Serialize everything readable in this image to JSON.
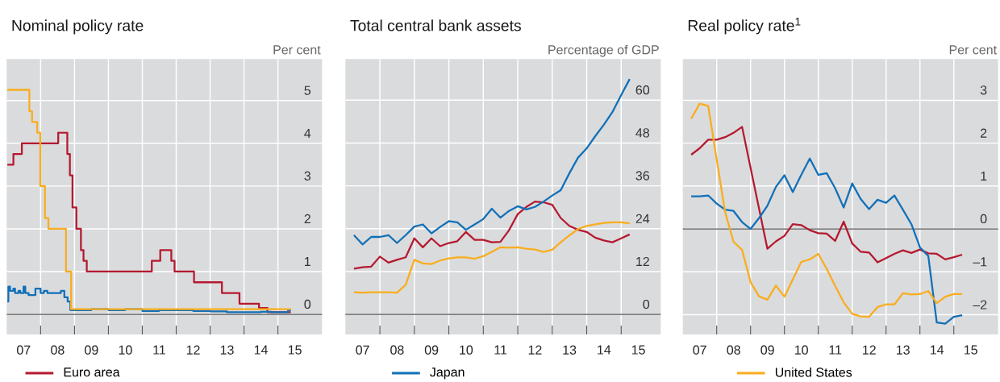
{
  "chart_data": [
    {
      "type": "step",
      "title": "Nominal policy rate",
      "ylabel": "Per cent",
      "grid": true,
      "legend": "bottom",
      "xlim": [
        "2007-01-01",
        "2016-04-20"
      ],
      "ylim": [
        -0.47,
        5.97
      ],
      "xticks": [
        {
          "value": "2008",
          "label": null
        },
        {
          "value": "2009",
          "label": null
        },
        {
          "value": "2010",
          "label": null
        },
        {
          "value": "2011",
          "label": null
        },
        {
          "value": "2012",
          "label": null
        },
        {
          "value": "2013",
          "label": null
        },
        {
          "value": "2014",
          "label": null
        },
        {
          "value": "2015",
          "label": null
        },
        {
          "value": "2007-07-02",
          "label": "07"
        },
        {
          "value": "2008-07-02",
          "label": "08"
        },
        {
          "value": "2009-07-02",
          "label": "09"
        },
        {
          "value": "2010-07-02",
          "label": "10"
        },
        {
          "value": "2011-07-02",
          "label": "11"
        },
        {
          "value": "2012-07-02",
          "label": "12"
        },
        {
          "value": "2013-07-02",
          "label": "13"
        },
        {
          "value": "2014-07-02",
          "label": "14"
        },
        {
          "value": "2015-07-02",
          "label": "15"
        }
      ],
      "yticks": [
        0,
        1,
        2,
        3,
        4,
        5
      ],
      "ref_lines": [
        {
          "axis": "y",
          "value": 0,
          "color": "#555555"
        }
      ],
      "series": [
        {
          "name": "Euro area",
          "color": "#b5192f",
          "x": [
            "2007-01-08",
            "2007-03-14",
            "2007-06-13",
            "2008-07-09",
            "2008-10-15",
            "2008-11-12",
            "2008-12-10",
            "2009-01-21",
            "2009-03-11",
            "2009-04-08",
            "2009-05-13",
            "2011-04-13",
            "2011-07-13",
            "2011-11-09",
            "2011-12-14",
            "2012-07-11",
            "2013-05-08",
            "2013-11-13",
            "2014-06-11",
            "2014-09-10",
            "2015-05-20"
          ],
          "values": [
            3.5,
            3.75,
            4.0,
            4.25,
            3.75,
            3.25,
            2.5,
            2.0,
            1.5,
            1.25,
            1.0,
            1.25,
            1.5,
            1.25,
            1.0,
            0.75,
            0.5,
            0.25,
            0.15,
            0.05,
            0.05
          ]
        },
        {
          "name": "Japan",
          "color": "#1170b8",
          "x": [
            "2007-01-08",
            "2007-01-19",
            "2007-02-06",
            "2007-03-14",
            "2007-04-01",
            "2007-05-08",
            "2007-05-27",
            "2007-07-01",
            "2007-07-20",
            "2007-08-25",
            "2007-11-06",
            "2008-01-01",
            "2008-02-06",
            "2008-03-14",
            "2008-08-07",
            "2008-09-13",
            "2008-10-19",
            "2008-11-17",
            "2009-07-01",
            "2010-01-01",
            "2010-07-01",
            "2011-01-01",
            "2011-07-01",
            "2012-01-01",
            "2012-07-01",
            "2013-01-01",
            "2013-07-01",
            "2014-01-01",
            "2014-07-01",
            "2014-10-19",
            "2015-04-20",
            "2015-05-20"
          ],
          "values": [
            0.3,
            0.65,
            0.55,
            0.6,
            0.5,
            0.55,
            0.5,
            0.65,
            0.5,
            0.45,
            0.6,
            0.5,
            0.55,
            0.5,
            0.55,
            0.4,
            0.3,
            0.1,
            0.12,
            0.1,
            0.12,
            0.08,
            0.1,
            0.1,
            0.08,
            0.07,
            0.05,
            0.05,
            0.06,
            0.05,
            0.1,
            0.1
          ]
        },
        {
          "name": "United States",
          "color": "#f9ad1d",
          "x": [
            "2007-01-08",
            "2007-09-02",
            "2007-10-01",
            "2007-11-25",
            "2007-12-28",
            "2008-02-17",
            "2008-03-25",
            "2008-10-01",
            "2008-11-25",
            "2015-05-20"
          ],
          "values": [
            5.25,
            4.75,
            4.5,
            4.25,
            3.0,
            2.25,
            2.0,
            1.0,
            0.12,
            0.12
          ]
        }
      ]
    },
    {
      "type": "line",
      "title": "Total central bank assets",
      "ylabel": "Percentage of GDP",
      "grid": true,
      "xlim": [
        "2007-01-01",
        "2016-02-24"
      ],
      "ylim": [
        -5.6,
        71.5
      ],
      "xticks": [
        {
          "value": "2008",
          "label": null
        },
        {
          "value": "2009",
          "label": null
        },
        {
          "value": "2010",
          "label": null
        },
        {
          "value": "2011",
          "label": null
        },
        {
          "value": "2012",
          "label": null
        },
        {
          "value": "2013",
          "label": null
        },
        {
          "value": "2014",
          "label": null
        },
        {
          "value": "2015",
          "label": null
        },
        {
          "value": "2007-07-02",
          "label": "07"
        },
        {
          "value": "2008-07-02",
          "label": "08"
        },
        {
          "value": "2009-07-02",
          "label": "09"
        },
        {
          "value": "2010-07-02",
          "label": "10"
        },
        {
          "value": "2011-07-02",
          "label": "11"
        },
        {
          "value": "2012-07-02",
          "label": "12"
        },
        {
          "value": "2013-07-02",
          "label": "13"
        },
        {
          "value": "2014-07-02",
          "label": "14"
        },
        {
          "value": "2015-07-02",
          "label": "15"
        }
      ],
      "yticks": [
        0,
        12,
        24,
        36,
        48,
        60
      ],
      "ref_lines": [
        {
          "axis": "y",
          "value": 0,
          "color": "#555555"
        }
      ],
      "x": [
        "2007-04",
        "2007-07",
        "2007-10",
        "2008-01",
        "2008-04",
        "2008-07",
        "2008-10",
        "2009-01",
        "2009-04",
        "2009-07",
        "2009-10",
        "2010-01",
        "2010-04",
        "2010-07",
        "2010-10",
        "2011-01",
        "2011-04",
        "2011-07",
        "2011-10",
        "2012-01",
        "2012-04",
        "2012-07",
        "2012-10",
        "2013-01",
        "2013-04",
        "2013-07",
        "2013-10",
        "2014-01",
        "2014-04",
        "2014-07",
        "2014-10",
        "2015-01",
        "2015-04"
      ],
      "series": [
        {
          "color": "#b5192f",
          "values": [
            12.8,
            13.2,
            13.4,
            16.2,
            14.5,
            15.3,
            16.0,
            21.3,
            18.8,
            21.3,
            19.1,
            20.0,
            20.5,
            23.1,
            20.9,
            20.9,
            20.2,
            20.3,
            23.6,
            28.1,
            30.1,
            31.6,
            31.4,
            30.7,
            27.0,
            24.8,
            23.7,
            23.1,
            21.5,
            20.7,
            20.2,
            21.3,
            22.4
          ]
        },
        {
          "color": "#1170b8",
          "values": [
            22.2,
            19.6,
            21.7,
            21.7,
            22.2,
            20.0,
            22.2,
            24.6,
            25.2,
            22.7,
            24.5,
            26.1,
            25.8,
            23.7,
            25.2,
            26.7,
            29.6,
            27.1,
            29.0,
            30.3,
            29.4,
            30.1,
            31.6,
            33.3,
            34.8,
            39.5,
            43.9,
            46.5,
            49.9,
            53.1,
            56.7,
            61.4,
            65.9
          ]
        },
        {
          "color": "#f9ad1d",
          "values": [
            6.2,
            6.1,
            6.2,
            6.2,
            6.2,
            6.1,
            8.3,
            15.3,
            14.3,
            14.1,
            15.1,
            15.7,
            16.0,
            16.0,
            15.6,
            16.3,
            17.5,
            18.8,
            18.7,
            18.8,
            18.4,
            18.2,
            17.5,
            18.1,
            20.2,
            22.1,
            23.9,
            24.8,
            25.2,
            25.6,
            25.8,
            25.8,
            25.5
          ]
        }
      ]
    },
    {
      "type": "line",
      "title": "Real policy rate$^{1}$",
      "ylabel": "Per cent",
      "grid": true,
      "xlim": [
        "2007-01-01",
        "2016-04-23"
      ],
      "ylim": [
        -2.46,
        3.96
      ],
      "xticks": [
        {
          "value": "2008",
          "label": null
        },
        {
          "value": "2009",
          "label": null
        },
        {
          "value": "2010",
          "label": null
        },
        {
          "value": "2011",
          "label": null
        },
        {
          "value": "2012",
          "label": null
        },
        {
          "value": "2013",
          "label": null
        },
        {
          "value": "2014",
          "label": null
        },
        {
          "value": "2015",
          "label": null
        },
        {
          "value": "2007-07-02",
          "label": "07"
        },
        {
          "value": "2008-07-02",
          "label": "08"
        },
        {
          "value": "2009-07-02",
          "label": "09"
        },
        {
          "value": "2010-07-02",
          "label": "10"
        },
        {
          "value": "2011-07-02",
          "label": "11"
        },
        {
          "value": "2012-07-02",
          "label": "12"
        },
        {
          "value": "2013-07-02",
          "label": "13"
        },
        {
          "value": "2014-07-02",
          "label": "14"
        },
        {
          "value": "2015-07-02",
          "label": "15"
        }
      ],
      "yticks": [
        {
          "value": -2,
          "label": "–2"
        },
        {
          "value": -1,
          "label": "–1"
        },
        0,
        1,
        2,
        3
      ],
      "ref_lines": [
        {
          "axis": "y",
          "value": 0,
          "color": "#555555"
        }
      ],
      "x": [
        "2007-04",
        "2007-07",
        "2007-10",
        "2008-01",
        "2008-04",
        "2008-07",
        "2008-10",
        "2009-01",
        "2009-04",
        "2009-07",
        "2009-10",
        "2010-01",
        "2010-04",
        "2010-07",
        "2010-10",
        "2011-01",
        "2011-04",
        "2011-07",
        "2011-10",
        "2012-01",
        "2012-04",
        "2012-07",
        "2012-10",
        "2013-01",
        "2013-04",
        "2013-07",
        "2013-10",
        "2014-01",
        "2014-04",
        "2014-07",
        "2014-10",
        "2015-01",
        "2015-04"
      ],
      "series": [
        {
          "color": "#b5192f",
          "x": [
            "2007-04",
            "2007-07",
            "2007-10",
            "2008-01",
            "2008-04",
            "2008-07",
            "2008-10",
            "2009-07",
            "2009-10",
            "2010-01",
            "2010-04",
            "2010-07",
            "2010-10",
            "2011-01",
            "2011-04",
            "2011-07",
            "2011-10",
            "2012-01",
            "2012-04",
            "2012-07",
            "2012-10",
            "2013-01",
            "2013-04",
            "2013-07",
            "2013-10",
            "2014-01",
            "2014-04",
            "2014-07",
            "2014-10",
            "2015-01",
            "2015-04"
          ],
          "values": [
            1.73,
            1.88,
            2.08,
            2.08,
            2.14,
            2.24,
            2.38,
            -0.46,
            -0.29,
            -0.16,
            0.11,
            0.09,
            -0.03,
            -0.1,
            -0.11,
            -0.28,
            0.17,
            -0.34,
            -0.53,
            -0.55,
            -0.78,
            -0.68,
            -0.58,
            -0.5,
            -0.56,
            -0.48,
            -0.57,
            -0.58,
            -0.71,
            -0.66,
            -0.6
          ]
        },
        {
          "color": "#1170b8",
          "values": [
            0.76,
            0.76,
            0.78,
            0.59,
            0.45,
            0.42,
            0.16,
            0.0,
            0.25,
            0.54,
            0.98,
            1.25,
            0.86,
            1.26,
            1.64,
            1.26,
            1.3,
            0.95,
            0.5,
            1.06,
            0.7,
            0.46,
            0.68,
            0.61,
            0.78,
            0.45,
            0.11,
            -0.43,
            -0.63,
            -2.18,
            -2.21,
            -2.05,
            -2.01
          ]
        },
        {
          "color": "#f9ad1d",
          "x": [
            "2007-04",
            "2007-07",
            "2007-10",
            "2008-04",
            "2008-07",
            "2008-10",
            "2009-01",
            "2009-04",
            "2009-07",
            "2009-10",
            "2010-01",
            "2010-04",
            "2010-07",
            "2010-10",
            "2011-01",
            "2011-04",
            "2011-07",
            "2011-10",
            "2012-01",
            "2012-04",
            "2012-07",
            "2012-10",
            "2013-01",
            "2013-04",
            "2013-07",
            "2013-10",
            "2014-01",
            "2014-04",
            "2014-07",
            "2014-10",
            "2015-01",
            "2015-04"
          ],
          "values": [
            2.57,
            2.92,
            2.87,
            0.39,
            -0.3,
            -0.49,
            -1.24,
            -1.57,
            -1.65,
            -1.32,
            -1.58,
            -1.18,
            -0.77,
            -0.71,
            -0.58,
            -0.93,
            -1.33,
            -1.71,
            -1.98,
            -2.04,
            -2.05,
            -1.82,
            -1.76,
            -1.76,
            -1.5,
            -1.53,
            -1.52,
            -1.45,
            -1.73,
            -1.58,
            -1.52,
            -1.52
          ]
        }
      ]
    }
  ]
}
